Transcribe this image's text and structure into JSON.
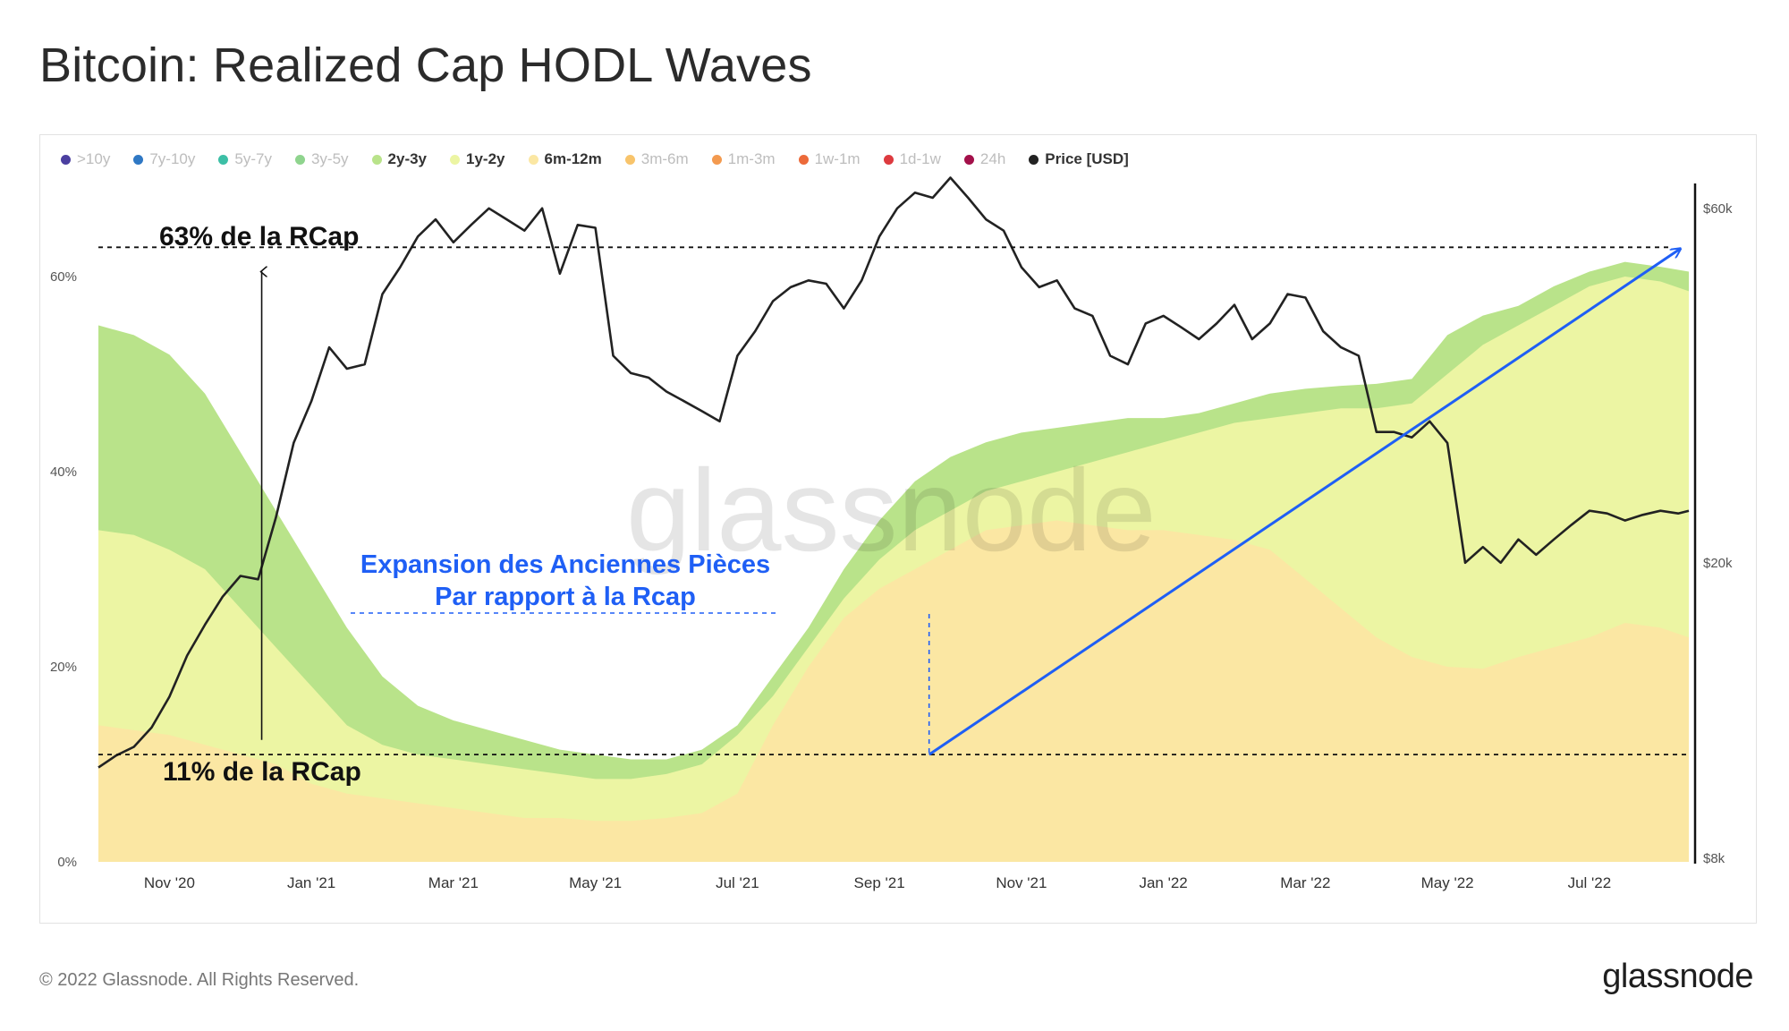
{
  "title": "Bitcoin: Realized Cap HODL Waves",
  "footer": {
    "copyright": "© 2022 Glassnode. All Rights Reserved.",
    "brand": "glassnode"
  },
  "watermark": "glassnode",
  "legend": [
    {
      "label": ">10y",
      "color": "#4b3fa0",
      "active": false
    },
    {
      "label": "7y-10y",
      "color": "#2f78c4",
      "active": false
    },
    {
      "label": "5y-7y",
      "color": "#3cbfa6",
      "active": false
    },
    {
      "label": "3y-5y",
      "color": "#8fd48e",
      "active": false
    },
    {
      "label": "2y-3y",
      "color": "#b9e38a",
      "active": true
    },
    {
      "label": "1y-2y",
      "color": "#ecf5a3",
      "active": true
    },
    {
      "label": "6m-12m",
      "color": "#fbe7a3",
      "active": true
    },
    {
      "label": "3m-6m",
      "color": "#f8c46b",
      "active": false
    },
    {
      "label": "1m-3m",
      "color": "#f39a4f",
      "active": false
    },
    {
      "label": "1w-1m",
      "color": "#ec6a3a",
      "active": false
    },
    {
      "label": "1d-1w",
      "color": "#dd3a3f",
      "active": false
    },
    {
      "label": "24h",
      "color": "#a3104a",
      "active": false
    },
    {
      "label": "Price [USD]",
      "color": "#222222",
      "active": true
    }
  ],
  "annotations": {
    "top_level": "63% de la RCap",
    "bottom_level": "11% de la RCap",
    "expansion_line1": "Expansion des Anciennes Pièces",
    "expansion_line2": "Par rapport à la Rcap",
    "colors": {
      "blue": "#1f5ff5",
      "black": "#111111"
    }
  },
  "chart_data": {
    "type": "area",
    "title": "Bitcoin: Realized Cap HODL Waves",
    "x_range": [
      "2020-10-01",
      "2022-08-12"
    ],
    "y_left": {
      "label": "",
      "ticks": [
        "0%",
        "20%",
        "40%",
        "60%"
      ],
      "range": [
        0,
        70
      ]
    },
    "y_right": {
      "label": "Price [USD]",
      "scale": "log",
      "ticks": [
        "$8k",
        "$20k",
        "$60k"
      ],
      "range": [
        8000,
        65000
      ]
    },
    "x_ticks": [
      "Nov '20",
      "Jan '21",
      "Mar '21",
      "May '21",
      "Jul '21",
      "Sep '21",
      "Nov '21",
      "Jan '22",
      "Mar '22",
      "May '22",
      "Jul '22"
    ],
    "x_tick_months": [
      1,
      3,
      5,
      7,
      9,
      11,
      13,
      15,
      17,
      19,
      21
    ],
    "series": [
      {
        "name": "6m-12m",
        "unit": "percent of Realized Cap",
        "color": "#fbe7a3",
        "x_months": [
          0.0,
          0.5,
          1.0,
          1.5,
          2.0,
          2.5,
          3.0,
          3.5,
          4.0,
          4.5,
          5.0,
          5.5,
          6.0,
          6.5,
          7.0,
          7.5,
          8.0,
          8.5,
          9.0,
          9.5,
          10.0,
          10.5,
          11.0,
          11.5,
          12.0,
          12.5,
          13.0,
          13.5,
          14.0,
          14.5,
          15.0,
          15.5,
          16.0,
          16.5,
          17.0,
          17.5,
          18.0,
          18.5,
          19.0,
          19.5,
          20.0,
          20.5,
          21.0,
          21.5,
          22.0,
          22.4
        ],
        "values": [
          14,
          13.5,
          13,
          12,
          11,
          10,
          8,
          7,
          6.5,
          6,
          5.5,
          5,
          4.5,
          4.5,
          4.2,
          4.2,
          4.5,
          5,
          7,
          14,
          20,
          25,
          28,
          30,
          32,
          34,
          34.5,
          35,
          34.5,
          34,
          34,
          33.5,
          33,
          32,
          29,
          26,
          23,
          21,
          20,
          19.8,
          21,
          22,
          23,
          24.5,
          24,
          23
        ]
      },
      {
        "name": "1y-2y",
        "unit": "percent of Realized Cap (cumulative top)",
        "color": "#ecf5a3",
        "x_months": [
          0.0,
          0.5,
          1.0,
          1.5,
          2.0,
          2.5,
          3.0,
          3.5,
          4.0,
          4.5,
          5.0,
          5.5,
          6.0,
          6.5,
          7.0,
          7.5,
          8.0,
          8.5,
          9.0,
          9.5,
          10.0,
          10.5,
          11.0,
          11.5,
          12.0,
          12.5,
          13.0,
          13.5,
          14.0,
          14.5,
          15.0,
          15.5,
          16.0,
          16.5,
          17.0,
          17.5,
          18.0,
          18.5,
          19.0,
          19.5,
          20.0,
          20.5,
          21.0,
          21.5,
          22.0,
          22.4
        ],
        "values": [
          34,
          33.5,
          32,
          30,
          26,
          22,
          18,
          14,
          12,
          11,
          10.5,
          10,
          9.5,
          9,
          8.5,
          8.5,
          9,
          10,
          13,
          17,
          22,
          27,
          31,
          34,
          36,
          38,
          39,
          40,
          41,
          42,
          43,
          44,
          45,
          45.5,
          46,
          46.5,
          46.5,
          47,
          50,
          53,
          55,
          57,
          59,
          60,
          59.5,
          58.5
        ]
      },
      {
        "name": "2y-3y",
        "unit": "percent of Realized Cap (cumulative top)",
        "color": "#b9e38a",
        "x_months": [
          0.0,
          0.5,
          1.0,
          1.5,
          2.0,
          2.5,
          3.0,
          3.5,
          4.0,
          4.5,
          5.0,
          5.5,
          6.0,
          6.5,
          7.0,
          7.5,
          8.0,
          8.5,
          9.0,
          9.5,
          10.0,
          10.5,
          11.0,
          11.5,
          12.0,
          12.5,
          13.0,
          13.5,
          14.0,
          14.5,
          15.0,
          15.5,
          16.0,
          16.5,
          17.0,
          17.5,
          18.0,
          18.5,
          19.0,
          19.5,
          20.0,
          20.5,
          21.0,
          21.5,
          22.0,
          22.4
        ],
        "values": [
          55,
          54,
          52,
          48,
          42,
          36,
          30,
          24,
          19,
          16,
          14.5,
          13.5,
          12.5,
          11.5,
          11,
          10.5,
          10.5,
          11.5,
          14,
          19,
          24,
          30,
          35,
          39,
          41.5,
          43,
          44,
          44.5,
          45,
          45.5,
          45.5,
          46,
          47,
          48,
          48.5,
          48.8,
          49,
          49.5,
          54,
          56,
          57,
          59,
          60.5,
          61.5,
          61,
          60.5
        ]
      },
      {
        "name": "Price [USD]",
        "unit": "USD",
        "color": "#222222",
        "x_months": [
          0.0,
          0.25,
          0.5,
          0.75,
          1.0,
          1.25,
          1.5,
          1.75,
          2.0,
          2.25,
          2.5,
          2.75,
          3.0,
          3.25,
          3.5,
          3.75,
          4.0,
          4.25,
          4.5,
          4.75,
          5.0,
          5.25,
          5.5,
          5.75,
          6.0,
          6.25,
          6.5,
          6.75,
          7.0,
          7.25,
          7.5,
          7.75,
          8.0,
          8.25,
          8.5,
          8.75,
          9.0,
          9.25,
          9.5,
          9.75,
          10.0,
          10.25,
          10.5,
          10.75,
          11.0,
          11.25,
          11.5,
          11.75,
          12.0,
          12.25,
          12.5,
          12.75,
          13.0,
          13.25,
          13.5,
          13.75,
          14.0,
          14.25,
          14.5,
          14.75,
          15.0,
          15.25,
          15.5,
          15.75,
          16.0,
          16.25,
          16.5,
          16.75,
          17.0,
          17.25,
          17.5,
          17.75,
          18.0,
          18.25,
          18.5,
          18.75,
          19.0,
          19.25,
          19.5,
          19.75,
          20.0,
          20.25,
          20.5,
          20.75,
          21.0,
          21.25,
          21.5,
          21.75,
          22.0,
          22.25,
          22.4
        ],
        "values": [
          10600,
          11000,
          11300,
          12000,
          13200,
          15000,
          16500,
          18000,
          19200,
          19000,
          23000,
          29000,
          33000,
          39000,
          36500,
          37000,
          46000,
          50000,
          55000,
          58000,
          54000,
          57000,
          60000,
          58000,
          56000,
          60000,
          49000,
          57000,
          56500,
          38000,
          36000,
          35500,
          34000,
          33000,
          32000,
          31000,
          38000,
          41000,
          45000,
          47000,
          48000,
          47500,
          44000,
          48000,
          55000,
          60000,
          63000,
          62000,
          66000,
          62000,
          58000,
          56000,
          50000,
          47000,
          48000,
          44000,
          43000,
          38000,
          37000,
          42000,
          43000,
          41500,
          40000,
          42000,
          44500,
          40000,
          42000,
          46000,
          45500,
          41000,
          39000,
          38000,
          30000,
          30000,
          29500,
          31000,
          29000,
          20000,
          21000,
          20000,
          21500,
          20500,
          21500,
          22500,
          23500,
          23300,
          22800,
          23200,
          23500,
          23300,
          23500
        ]
      }
    ],
    "annotations": [
      {
        "type": "hline",
        "label": "63% de la RCap",
        "y": 63
      },
      {
        "type": "hline",
        "label": "11% de la RCap",
        "y": 11
      },
      {
        "type": "arrow",
        "from_month": 11.7,
        "from_y": 11,
        "to_month": 22.4,
        "to_y": 63,
        "color": "#1f5ff5"
      },
      {
        "type": "vertical-arrow",
        "x_month": 2.3,
        "from_y": 12.5,
        "to_y": 60.5
      }
    ]
  }
}
